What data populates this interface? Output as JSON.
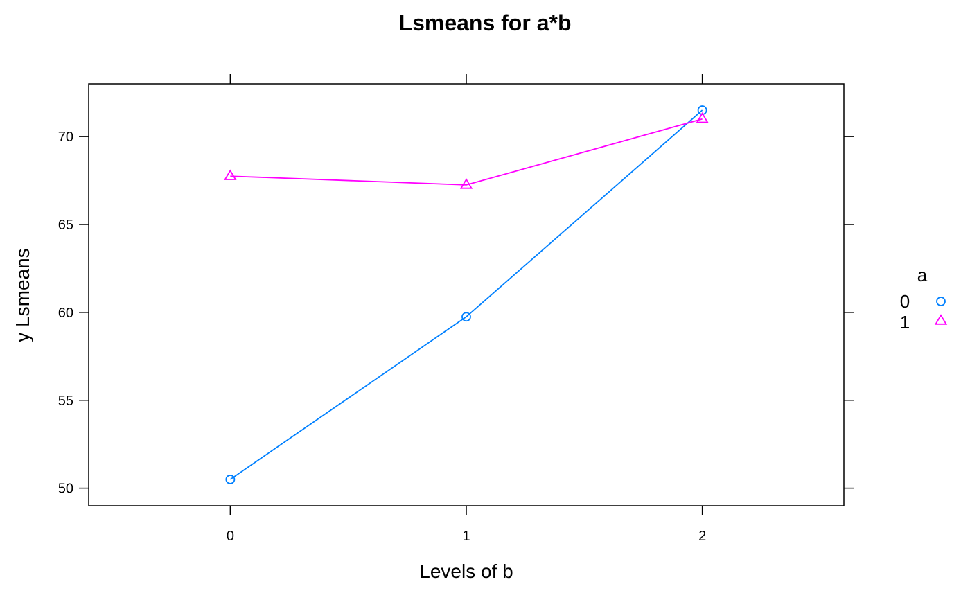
{
  "chart_data": {
    "type": "line",
    "title": "Lsmeans for a*b",
    "xlabel": "Levels of b",
    "ylabel": "y Lsmeans",
    "categories": [
      "0",
      "1",
      "2"
    ],
    "xlim": [
      -0.6,
      2.6
    ],
    "ylim": [
      49,
      73
    ],
    "yticks": [
      50,
      55,
      60,
      65,
      70
    ],
    "grid": false,
    "legend": {
      "title": "a",
      "placement": "right"
    },
    "series": [
      {
        "name": "0",
        "marker": "circle",
        "color": "#0080ff",
        "values": [
          50.5,
          59.75,
          71.5
        ]
      },
      {
        "name": "1",
        "marker": "triangle",
        "color": "#ff00ff",
        "values": [
          67.75,
          67.25,
          71.0
        ]
      }
    ]
  }
}
